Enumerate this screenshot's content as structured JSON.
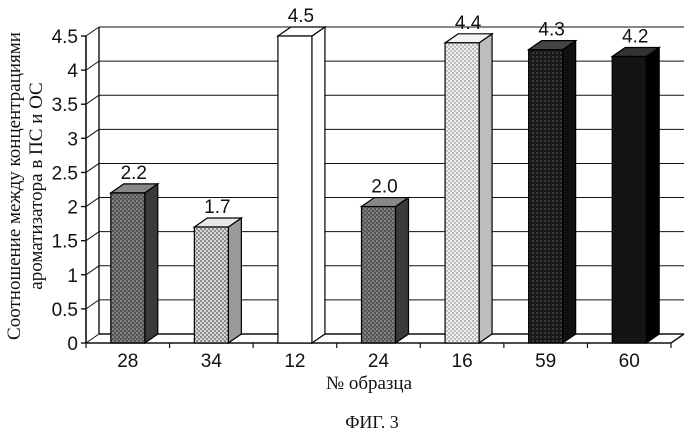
{
  "chart_data": {
    "type": "bar",
    "categories": [
      "28",
      "34",
      "12",
      "24",
      "16",
      "59",
      "60"
    ],
    "values": [
      2.2,
      1.7,
      4.5,
      2.0,
      4.4,
      4.3,
      4.2
    ],
    "value_labels": [
      "2.2",
      "1.7",
      "4.5",
      "2.0",
      "4.4",
      "4.3",
      "4.2"
    ],
    "fills": [
      "dark-gray-stipple",
      "light-gray-dots",
      "white",
      "dark-gray-stipple",
      "light-dots",
      "black-stipple",
      "black"
    ],
    "xlabel": "№ образца",
    "ylabel_line1": "Соотношение между концентрациями",
    "ylabel_line2": "ароматизатора в ПС и ОС",
    "ylim": [
      0,
      4.5
    ],
    "yticks": [
      "0",
      "0.5",
      "1",
      "1.5",
      "2",
      "2.5",
      "3",
      "3.5",
      "4",
      "4.5"
    ],
    "grid": true,
    "three_d": true
  },
  "figure": {
    "caption": "ФИГ. 3"
  }
}
